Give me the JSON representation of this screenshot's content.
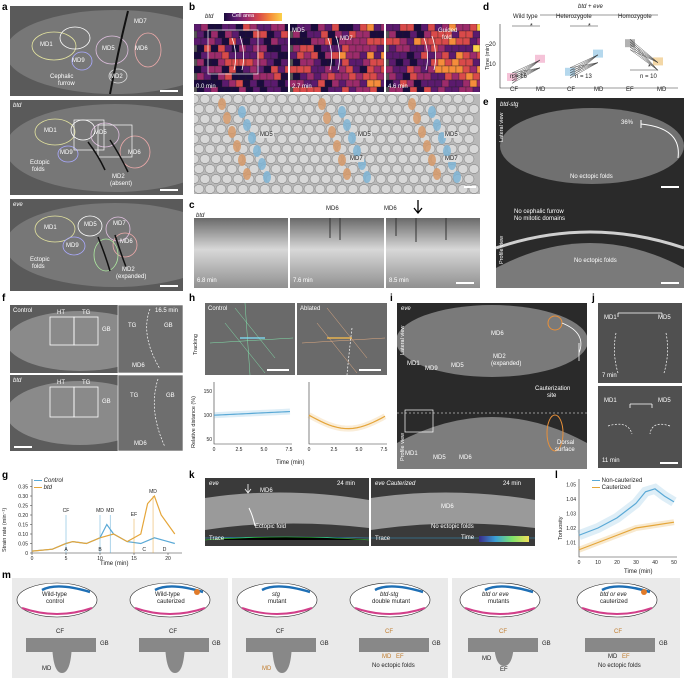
{
  "panels": {
    "a": "a",
    "b": "b",
    "c": "c",
    "d": "d",
    "e": "e",
    "f": "f",
    "g": "g",
    "h": "h",
    "i": "i",
    "j": "j",
    "k": "k",
    "l": "l",
    "m": "m"
  },
  "a": {
    "wt": "Wild type",
    "btd": "btd",
    "eve": "eve",
    "md1": "MD1",
    "md5": "MD5",
    "md6": "MD6",
    "md9": "MD9",
    "md2": "MD2",
    "md7": "MD7",
    "cephalic": "Cephalic",
    "furrow": "furrow",
    "ectopic": "Ectopic",
    "folds": "folds",
    "md2_absent": "MD2",
    "absent": "(absent)",
    "md2_exp": "MD2",
    "expanded": "(expanded)"
  },
  "b": {
    "btd": "btd",
    "cell_area": "Cell area",
    "md5": "MD5",
    "md7": "MD7",
    "guided": "Guided",
    "fold": "fold",
    "t1": "0.0 min",
    "t2": "2.7 min",
    "t3": "4.6 min",
    "colormap": [
      "#1a0b3d",
      "#5b1a6e",
      "#9c2b6b",
      "#d94a4a",
      "#f58d3b",
      "#fbd24a"
    ]
  },
  "c": {
    "btd": "btd",
    "md6": "MD6",
    "t1": "6.8 min",
    "t2": "7.6 min",
    "t3": "8.5 min"
  },
  "d": {
    "header": "btd + eve",
    "wt": "Wild type",
    "het": "Heterozygote",
    "homo": "Homozygote",
    "ylabel": "Time (min)",
    "n1": "n = 16",
    "n2": "n = 13",
    "n3": "n = 10",
    "star": "*",
    "x1": [
      "CF",
      "MD"
    ],
    "x2": [
      "CF",
      "MD"
    ],
    "x3": [
      "EF",
      "MD"
    ],
    "yticks": [
      "10",
      "20"
    ]
  },
  "e": {
    "title": "btd-stg",
    "pct": "36%",
    "lateral": "Lateral view",
    "profile": "Profile view",
    "noFolds": "No ectopic folds",
    "noCeph": "No cephalic furrow",
    "noMit": "No mitotic domains",
    "noFolds2": "No ectopic folds"
  },
  "f": {
    "control": "Control",
    "btd": "btd",
    "time": "16.5 min",
    "ht": "HT",
    "tg": "TG",
    "gb": "GB",
    "md6": "MD6"
  },
  "g": {
    "legend": [
      "Control",
      "btd"
    ],
    "ylabel": "Strain rate (min⁻¹)",
    "xlabel": "Time (min)",
    "yticks": [
      "0",
      "0.05",
      "0.10",
      "0.15",
      "0.20",
      "0.25",
      "0.30",
      "0.35"
    ],
    "xticks": [
      "0",
      "5",
      "10",
      "15",
      "20"
    ],
    "labels": [
      "CF",
      "MD",
      "MD",
      "EF",
      "MD",
      "MD"
    ],
    "subs": [
      "1",
      "2",
      "1",
      "2"
    ],
    "letters": [
      "A",
      "B",
      "C",
      "D"
    ],
    "colors": {
      "control": "#5aa9d6",
      "btd": "#e5a63a"
    }
  },
  "h": {
    "control": "Control",
    "ablated": "Ablated",
    "tracking": "Tracking",
    "ylabel": "Relative distance (%)",
    "xlabel": "Time (min)",
    "yticks": [
      "50",
      "100",
      "150"
    ],
    "xticks": [
      "0",
      "2.5",
      "5.0",
      "7.5"
    ]
  },
  "i": {
    "eve": "eve",
    "lateral": "Lateral view",
    "profile": "Profile view",
    "md6": "MD6",
    "md1": "MD1",
    "md9": "MD9",
    "md5": "MD5",
    "md2": "MD2",
    "expanded": "(expanded)",
    "caut": "Cauterization",
    "site": "site",
    "dorsal": "Dorsal",
    "surface": "surface"
  },
  "j": {
    "md1": "MD1",
    "md5": "MD5",
    "t1": "7 min",
    "t2": "11 min"
  },
  "k": {
    "eve": "eve",
    "eveC": "eve Cauterized",
    "md6": "MD6",
    "t": "24 min",
    "ectopic": "Ectopic fold",
    "noFolds": "No ectopic folds",
    "trace": "Trace",
    "time": "Time",
    "t0": "0"
  },
  "l": {
    "legend": [
      "Non-cauterized",
      "Cauterized"
    ],
    "ylabel": "Tortuosity",
    "xlabel": "Time (min)",
    "yticks": [
      "1.01",
      "1.02",
      "1.03",
      "1.04",
      "1.05"
    ],
    "xticks": [
      "0",
      "10",
      "20",
      "30",
      "40",
      "50"
    ]
  },
  "m": {
    "s1": {
      "top1": "Wild-type",
      "bot1": "control",
      "top2": "Wild-type",
      "bot2": "cauterized",
      "cf": "CF",
      "cf2": "CF",
      "gb": "GB",
      "gb2": "GB",
      "md": "MD"
    },
    "s2": {
      "top1": "stg",
      "bot1": "mutant",
      "top2": "btd-stg",
      "bot2": "double mutant",
      "cf": "CF",
      "gb": "GB",
      "gb2": "GB",
      "md": "MD",
      "cf2": "CF",
      "md2": "MD",
      "ef": "EF",
      "nof": "No ectopic folds"
    },
    "s3": {
      "top1": "btd or eve",
      "bot1": "mutants",
      "top2": "btd or eve",
      "bot2": "cauterized",
      "cf": "CF",
      "gb": "GB",
      "md": "MD",
      "ef": "EF",
      "cf2": "CF",
      "gb2": "GB",
      "md2": "MD",
      "ef2": "EF",
      "nof": "No ectopic folds"
    }
  }
}
